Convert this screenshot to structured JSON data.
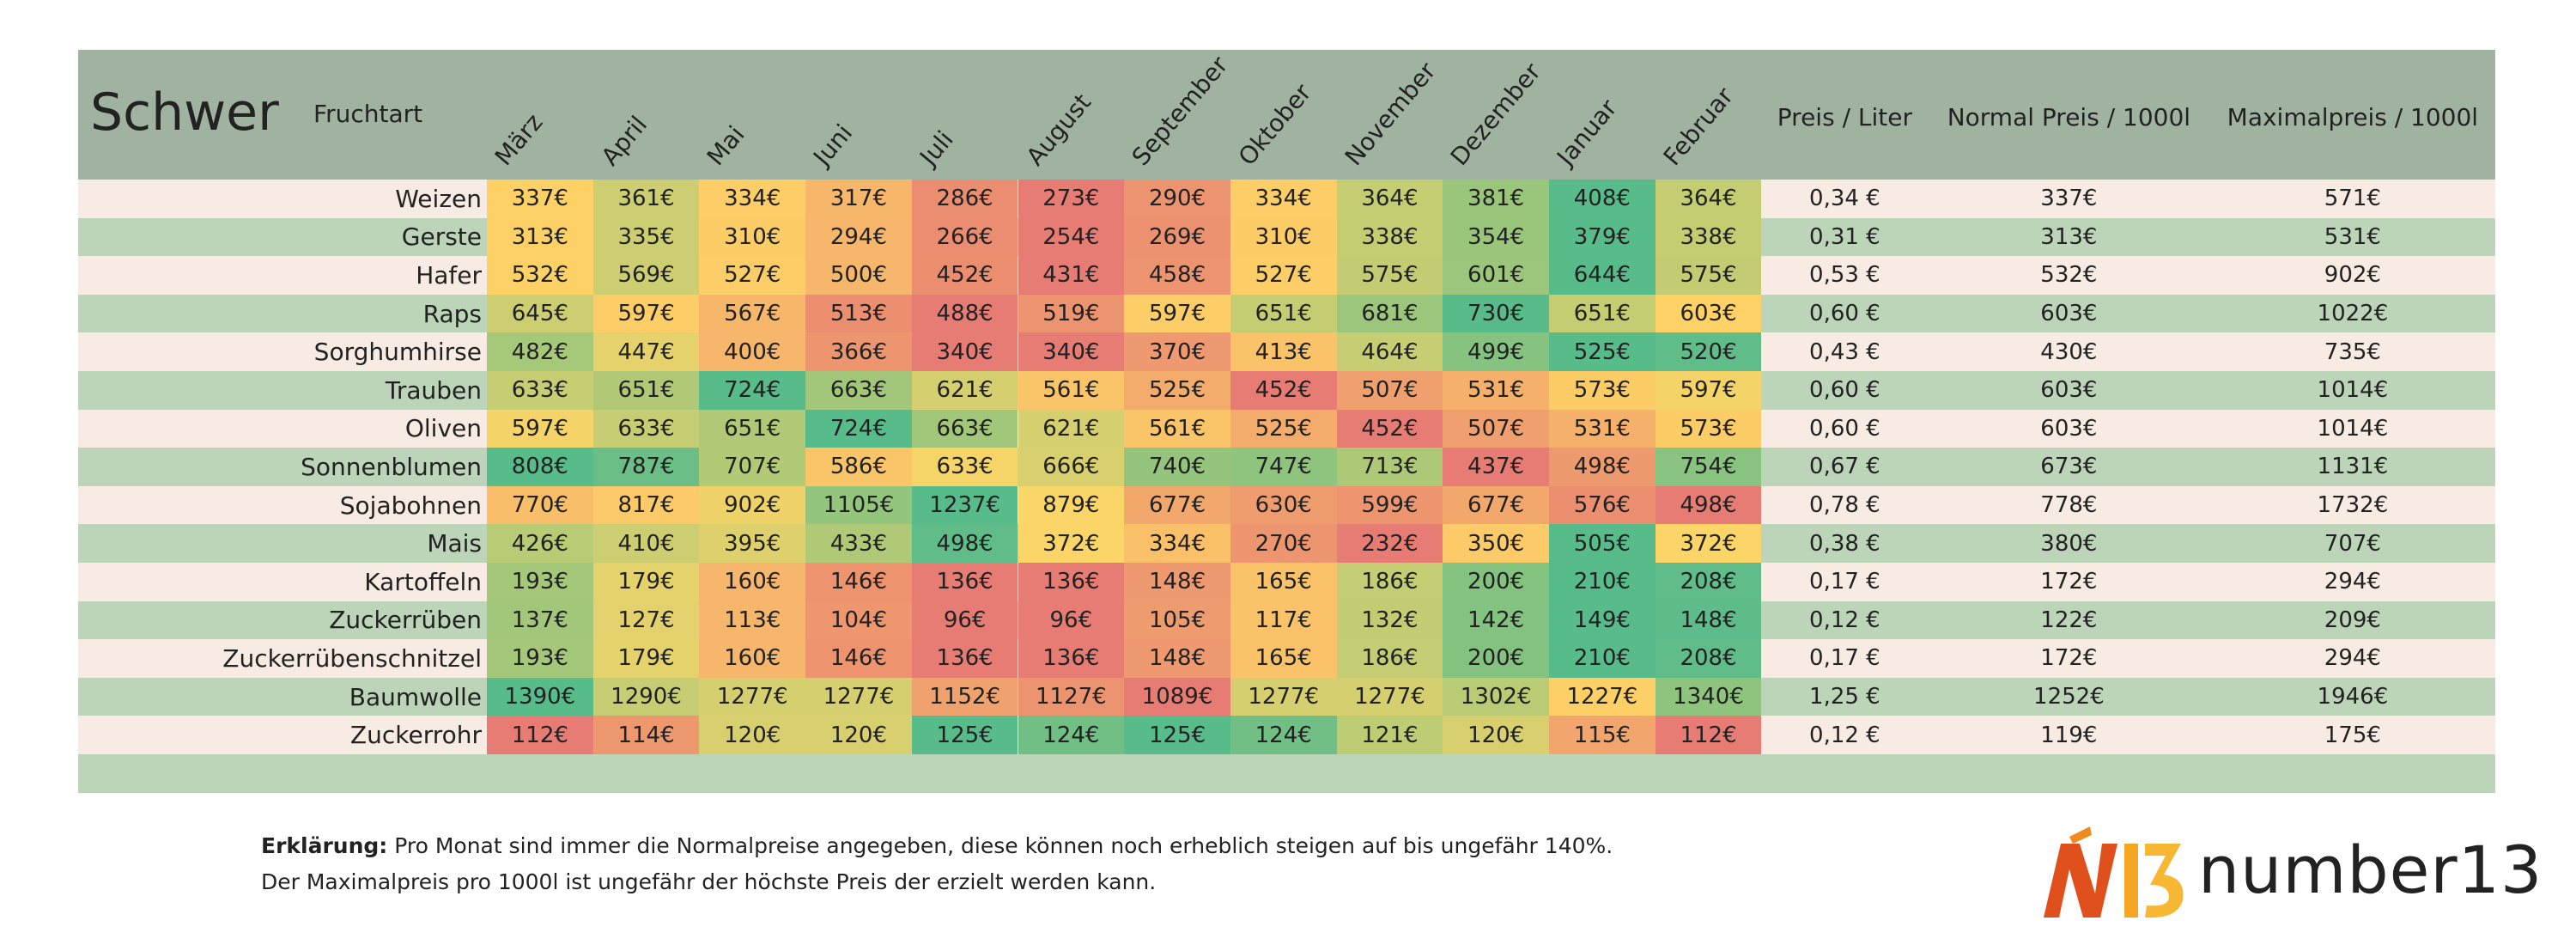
{
  "header": {
    "title": "Schwer",
    "column_label": "Fruchtart",
    "months": [
      "März",
      "April",
      "Mai",
      "Juni",
      "Juli",
      "August",
      "September",
      "Oktober",
      "November",
      "Dezember",
      "Januar",
      "Februar"
    ],
    "extra_columns": [
      "Preis / Liter",
      "Normal Preis / 1000l",
      "Maximalpreis / 1000l"
    ]
  },
  "table": {
    "rows": [
      [
        "Weizen",
        "337€",
        "361€",
        "334€",
        "317€",
        "286€",
        "273€",
        "290€",
        "334€",
        "364€",
        "381€",
        "408€",
        "364€",
        "0,34 €",
        "337€",
        "571€"
      ],
      [
        "Gerste",
        "313€",
        "335€",
        "310€",
        "294€",
        "266€",
        "254€",
        "269€",
        "310€",
        "338€",
        "354€",
        "379€",
        "338€",
        "0,31 €",
        "313€",
        "531€"
      ],
      [
        "Hafer",
        "532€",
        "569€",
        "527€",
        "500€",
        "452€",
        "431€",
        "458€",
        "527€",
        "575€",
        "601€",
        "644€",
        "575€",
        "0,53 €",
        "532€",
        "902€"
      ],
      [
        "Raps",
        "645€",
        "597€",
        "567€",
        "513€",
        "488€",
        "519€",
        "597€",
        "651€",
        "681€",
        "730€",
        "651€",
        "603€",
        "0,60 €",
        "603€",
        "1022€"
      ],
      [
        "Sorghumhirse",
        "482€",
        "447€",
        "400€",
        "366€",
        "340€",
        "340€",
        "370€",
        "413€",
        "464€",
        "499€",
        "525€",
        "520€",
        "0,43 €",
        "430€",
        "735€"
      ],
      [
        "Trauben",
        "633€",
        "651€",
        "724€",
        "663€",
        "621€",
        "561€",
        "525€",
        "452€",
        "507€",
        "531€",
        "573€",
        "597€",
        "0,60 €",
        "603€",
        "1014€"
      ],
      [
        "Oliven",
        "597€",
        "633€",
        "651€",
        "724€",
        "663€",
        "621€",
        "561€",
        "525€",
        "452€",
        "507€",
        "531€",
        "573€",
        "0,60 €",
        "603€",
        "1014€"
      ],
      [
        "Sonnenblumen",
        "808€",
        "787€",
        "707€",
        "586€",
        "633€",
        "666€",
        "740€",
        "747€",
        "713€",
        "437€",
        "498€",
        "754€",
        "0,67 €",
        "673€",
        "1131€"
      ],
      [
        "Sojabohnen",
        "770€",
        "817€",
        "902€",
        "1105€",
        "1237€",
        "879€",
        "677€",
        "630€",
        "599€",
        "677€",
        "576€",
        "498€",
        "0,78 €",
        "778€",
        "1732€"
      ],
      [
        "Mais",
        "426€",
        "410€",
        "395€",
        "433€",
        "498€",
        "372€",
        "334€",
        "270€",
        "232€",
        "350€",
        "505€",
        "372€",
        "0,38 €",
        "380€",
        "707€"
      ],
      [
        "Kartoffeln",
        "193€",
        "179€",
        "160€",
        "146€",
        "136€",
        "136€",
        "148€",
        "165€",
        "186€",
        "200€",
        "210€",
        "208€",
        "0,17 €",
        "172€",
        "294€"
      ],
      [
        "Zuckerrüben",
        "137€",
        "127€",
        "113€",
        "104€",
        "96€",
        "96€",
        "105€",
        "117€",
        "132€",
        "142€",
        "149€",
        "148€",
        "0,12 €",
        "122€",
        "209€"
      ],
      [
        "Zuckerrübenschnitzel",
        "193€",
        "179€",
        "160€",
        "146€",
        "136€",
        "136€",
        "148€",
        "165€",
        "186€",
        "200€",
        "210€",
        "208€",
        "0,17 €",
        "172€",
        "294€"
      ],
      [
        "Baumwolle",
        "1390€",
        "1290€",
        "1277€",
        "1277€",
        "1152€",
        "1127€",
        "1089€",
        "1277€",
        "1277€",
        "1302€",
        "1227€",
        "1340€",
        "1,25 €",
        "1252€",
        "1946€"
      ],
      [
        "Zuckerrohr",
        "112€",
        "114€",
        "120€",
        "120€",
        "125€",
        "124€",
        "125€",
        "124€",
        "121€",
        "120€",
        "115€",
        "112€",
        "0,12 €",
        "119€",
        "175€"
      ]
    ]
  },
  "footer": {
    "label": "Erklärung:",
    "text": " Pro Monat sind immer die Normalpreise angegeben, diese können noch erheblich steigen auf bis ungefähr 140%.",
    "line2": "Der Maximalpreis pro 1000l ist ungefähr der höchste Preis der erzielt werden kann."
  },
  "logo": {
    "text": "number13"
  }
}
